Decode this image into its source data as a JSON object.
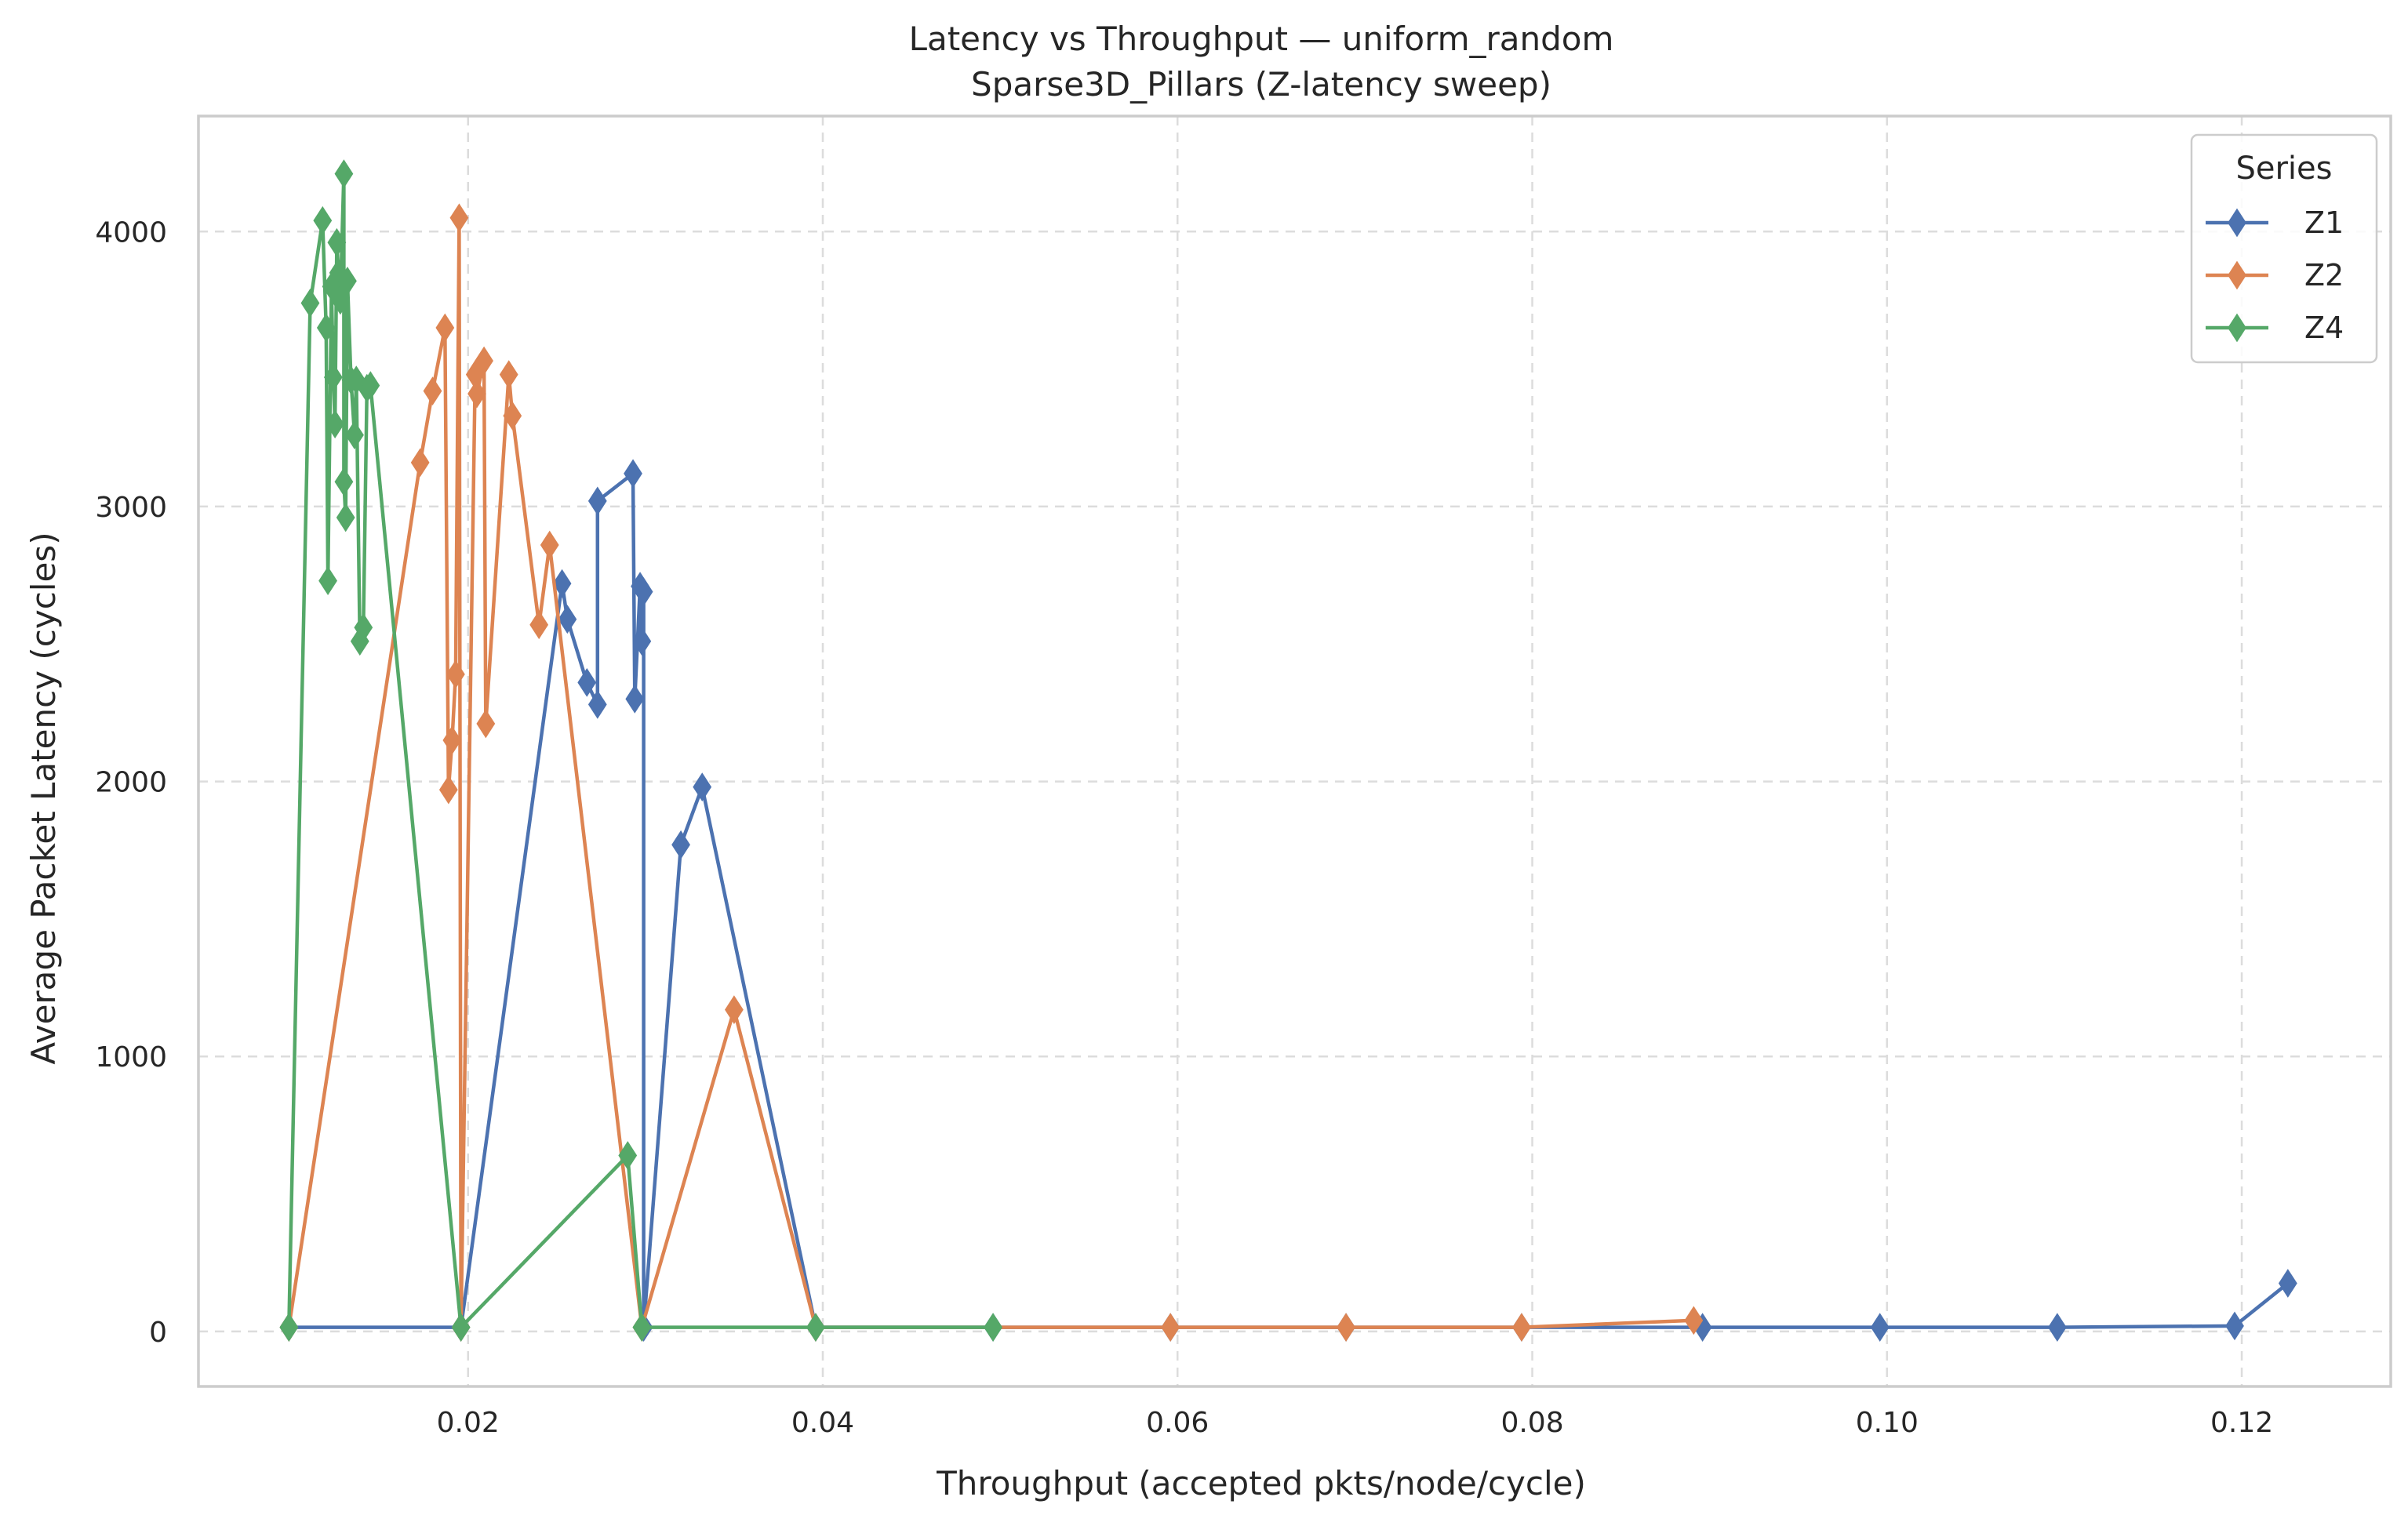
{
  "chart_data": {
    "type": "line",
    "title": "Latency vs Throughput — uniform_random",
    "subtitle": "Sparse3D_Pillars (Z-latency sweep)",
    "xlabel": "Throughput (accepted pkts/node/cycle)",
    "ylabel": "Average Packet Latency (cycles)",
    "xlim": [
      0.0048,
      0.1284
    ],
    "ylim": [
      -200,
      4420
    ],
    "x_ticks": [
      0.02,
      0.04,
      0.06,
      0.08,
      0.1,
      0.12
    ],
    "x_tick_labels": [
      "0.02",
      "0.04",
      "0.06",
      "0.08",
      "0.10",
      "0.12"
    ],
    "y_ticks": [
      0,
      1000,
      2000,
      3000,
      4000
    ],
    "y_tick_labels": [
      "0",
      "1000",
      "2000",
      "3000",
      "4000"
    ],
    "grid": true,
    "legend": {
      "title": "Series",
      "position": "top-right"
    },
    "series": [
      {
        "name": "Z1",
        "color": "#4c72b0",
        "marker": "thin_diamond",
        "x": [
          0.0099,
          0.0196,
          0.0253,
          0.0256,
          0.0267,
          0.0273,
          0.0273,
          0.0293,
          0.0294,
          0.0297,
          0.0298,
          0.0299,
          0.0299,
          0.032,
          0.0332,
          0.0396,
          0.0496,
          0.0596,
          0.0695,
          0.0794,
          0.0896,
          0.0996,
          0.1096,
          0.1196,
          0.1226
        ],
        "y": [
          15,
          15,
          2720,
          2590,
          2360,
          2280,
          3020,
          3120,
          2300,
          2710,
          2510,
          2690,
          15,
          1770,
          1980,
          15,
          15,
          15,
          15,
          15,
          15,
          15,
          15,
          20,
          175
        ]
      },
      {
        "name": "Z2",
        "color": "#dd8452",
        "marker": "thin_diamond",
        "x": [
          0.0099,
          0.0173,
          0.018,
          0.0187,
          0.0189,
          0.0191,
          0.0193,
          0.0195,
          0.0196,
          0.0204,
          0.0205,
          0.0209,
          0.021,
          0.0223,
          0.0225,
          0.024,
          0.0246,
          0.0298,
          0.035,
          0.0396,
          0.0596,
          0.0695,
          0.0794,
          0.0891
        ],
        "y": [
          15,
          3160,
          3420,
          3650,
          1970,
          2150,
          2390,
          4050,
          15,
          3480,
          3410,
          3530,
          2210,
          3480,
          3330,
          2570,
          2860,
          15,
          1170,
          15,
          15,
          15,
          15,
          40
        ]
      },
      {
        "name": "Z4",
        "color": "#55a868",
        "marker": "thin_diamond",
        "x": [
          0.0099,
          0.0111,
          0.0118,
          0.012,
          0.0121,
          0.0123,
          0.0124,
          0.0125,
          0.0126,
          0.0127,
          0.0128,
          0.013,
          0.013,
          0.0131,
          0.0132,
          0.0134,
          0.0136,
          0.0137,
          0.0139,
          0.0141,
          0.0143,
          0.0145,
          0.0196,
          0.029,
          0.0298,
          0.0396,
          0.0496
        ],
        "y": [
          15,
          3740,
          4040,
          3650,
          2730,
          3800,
          3470,
          3300,
          3960,
          3850,
          3750,
          4210,
          3090,
          2960,
          3820,
          3460,
          3260,
          3460,
          2510,
          2560,
          3430,
          3440,
          15,
          640,
          15,
          15,
          15
        ]
      }
    ]
  }
}
